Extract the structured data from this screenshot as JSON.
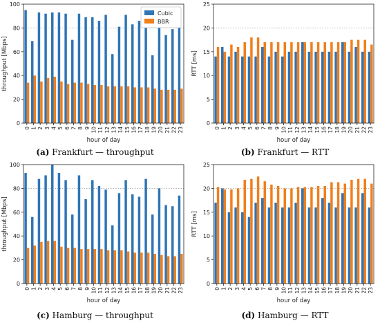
{
  "colors": {
    "cubic": "#2f75b5",
    "bbr": "#f07f1c"
  },
  "legend": {
    "cubic": "Cubic",
    "bbr": "BBR",
    "placement": "top-right"
  },
  "captions": [
    {
      "id": "a",
      "letter": "(a)",
      "text": "Frankfurt — throughput"
    },
    {
      "id": "b",
      "letter": "(b)",
      "text": "Frankfurt — RTT"
    },
    {
      "id": "c",
      "letter": "(c)",
      "text": "Hamburg — throughput"
    },
    {
      "id": "d",
      "letter": "(d)",
      "text": "Hamburg — RTT"
    }
  ],
  "chart_data": [
    {
      "id": "frankfurt-throughput",
      "type": "bar",
      "xlabel": "hour of day",
      "ylabel": "throughput [Mbps]",
      "ylim": [
        0,
        100
      ],
      "yticks": [
        0,
        20,
        40,
        60,
        80,
        100
      ],
      "grid": "dotted horizontal at 100",
      "legend": true,
      "categories": [
        "0",
        "1",
        "2",
        "3",
        "4",
        "5",
        "6",
        "7",
        "8",
        "9",
        "10",
        "11",
        "12",
        "13",
        "14",
        "15",
        "16",
        "17",
        "18",
        "19",
        "20",
        "21",
        "22",
        "23"
      ],
      "series": [
        {
          "name": "Cubic",
          "values": [
            95,
            69,
            93,
            92,
            93,
            93,
            92,
            70,
            92,
            89,
            89,
            86,
            91,
            58,
            81,
            91,
            83,
            86,
            85,
            57,
            84,
            74,
            79,
            82
          ]
        },
        {
          "name": "BBR",
          "values": [
            34,
            40,
            35,
            38,
            39,
            35,
            33,
            34,
            34,
            33,
            32,
            32,
            31,
            31,
            31,
            31,
            30,
            30,
            30,
            29,
            28,
            28,
            28,
            29
          ]
        }
      ]
    },
    {
      "id": "frankfurt-rtt",
      "type": "bar",
      "xlabel": "hour of day",
      "ylabel": "RTT [ms]",
      "ylim": [
        0,
        25
      ],
      "yticks": [
        0,
        5,
        10,
        15,
        20,
        25
      ],
      "grid": "dotted horizontal at 20",
      "legend": false,
      "categories": [
        "0",
        "1",
        "2",
        "3",
        "4",
        "5",
        "6",
        "7",
        "8",
        "9",
        "10",
        "11",
        "12",
        "13",
        "14",
        "15",
        "16",
        "17",
        "18",
        "19",
        "20",
        "21",
        "22",
        "23"
      ],
      "series": [
        {
          "name": "Cubic",
          "values": [
            14,
            16,
            14,
            15,
            14,
            14,
            14,
            16,
            14,
            15,
            14,
            15,
            15,
            17,
            15,
            15,
            15,
            15,
            15,
            17,
            15,
            16,
            15,
            15
          ]
        },
        {
          "name": "BBR",
          "values": [
            16,
            15,
            16.5,
            16,
            17,
            18,
            18,
            17,
            17,
            17,
            17,
            17,
            17,
            17,
            17,
            17,
            17,
            17,
            17,
            17,
            17.5,
            17.5,
            17.5,
            16.5
          ]
        }
      ]
    },
    {
      "id": "hamburg-throughput",
      "type": "bar",
      "xlabel": "hour of day",
      "ylabel": "throughput [Mbps]",
      "ylim": [
        0,
        100
      ],
      "yticks": [
        0,
        20,
        40,
        60,
        80,
        100
      ],
      "grid": "dotted horizontal at 100",
      "legend": false,
      "categories": [
        "0",
        "1",
        "2",
        "3",
        "4",
        "5",
        "6",
        "7",
        "8",
        "9",
        "10",
        "11",
        "12",
        "13",
        "14",
        "15",
        "16",
        "17",
        "18",
        "19",
        "20",
        "21",
        "22",
        "23"
      ],
      "series": [
        {
          "name": "Cubic",
          "values": [
            93,
            56,
            88,
            91,
            100,
            93,
            87,
            58,
            91,
            71,
            87,
            82,
            79,
            49,
            76,
            87,
            75,
            73,
            88,
            58,
            80,
            66,
            65,
            74
          ]
        },
        {
          "name": "BBR",
          "values": [
            30,
            32,
            35,
            36,
            36,
            31,
            30,
            30,
            29,
            29,
            29,
            29,
            28,
            28,
            28,
            27,
            26,
            26,
            26,
            25,
            24,
            23,
            23,
            25
          ]
        }
      ]
    },
    {
      "id": "hamburg-rtt",
      "type": "bar",
      "xlabel": "hour of day",
      "ylabel": "RTT [ms]",
      "ylim": [
        0,
        25
      ],
      "yticks": [
        0,
        5,
        10,
        15,
        20,
        25
      ],
      "grid": "dotted horizontal at 20",
      "legend": false,
      "categories": [
        "0",
        "1",
        "2",
        "3",
        "4",
        "5",
        "6",
        "7",
        "8",
        "9",
        "10",
        "11",
        "12",
        "13",
        "14",
        "15",
        "16",
        "17",
        "18",
        "19",
        "20",
        "21",
        "22",
        "23"
      ],
      "series": [
        {
          "name": "Cubic",
          "values": [
            17,
            20,
            15,
            16,
            15,
            14,
            17,
            18,
            16,
            17,
            16,
            16,
            17,
            20,
            16,
            16,
            18,
            17,
            16,
            19,
            16,
            16,
            19,
            16
          ]
        },
        {
          "name": "BBR",
          "values": [
            20.3,
            19.8,
            19.8,
            20,
            21.8,
            22,
            22.5,
            21.5,
            20.8,
            20.5,
            20,
            20,
            20.3,
            20.3,
            20.3,
            20.5,
            20.5,
            21.3,
            21.3,
            21,
            21.8,
            22,
            22,
            21
          ]
        }
      ]
    }
  ]
}
